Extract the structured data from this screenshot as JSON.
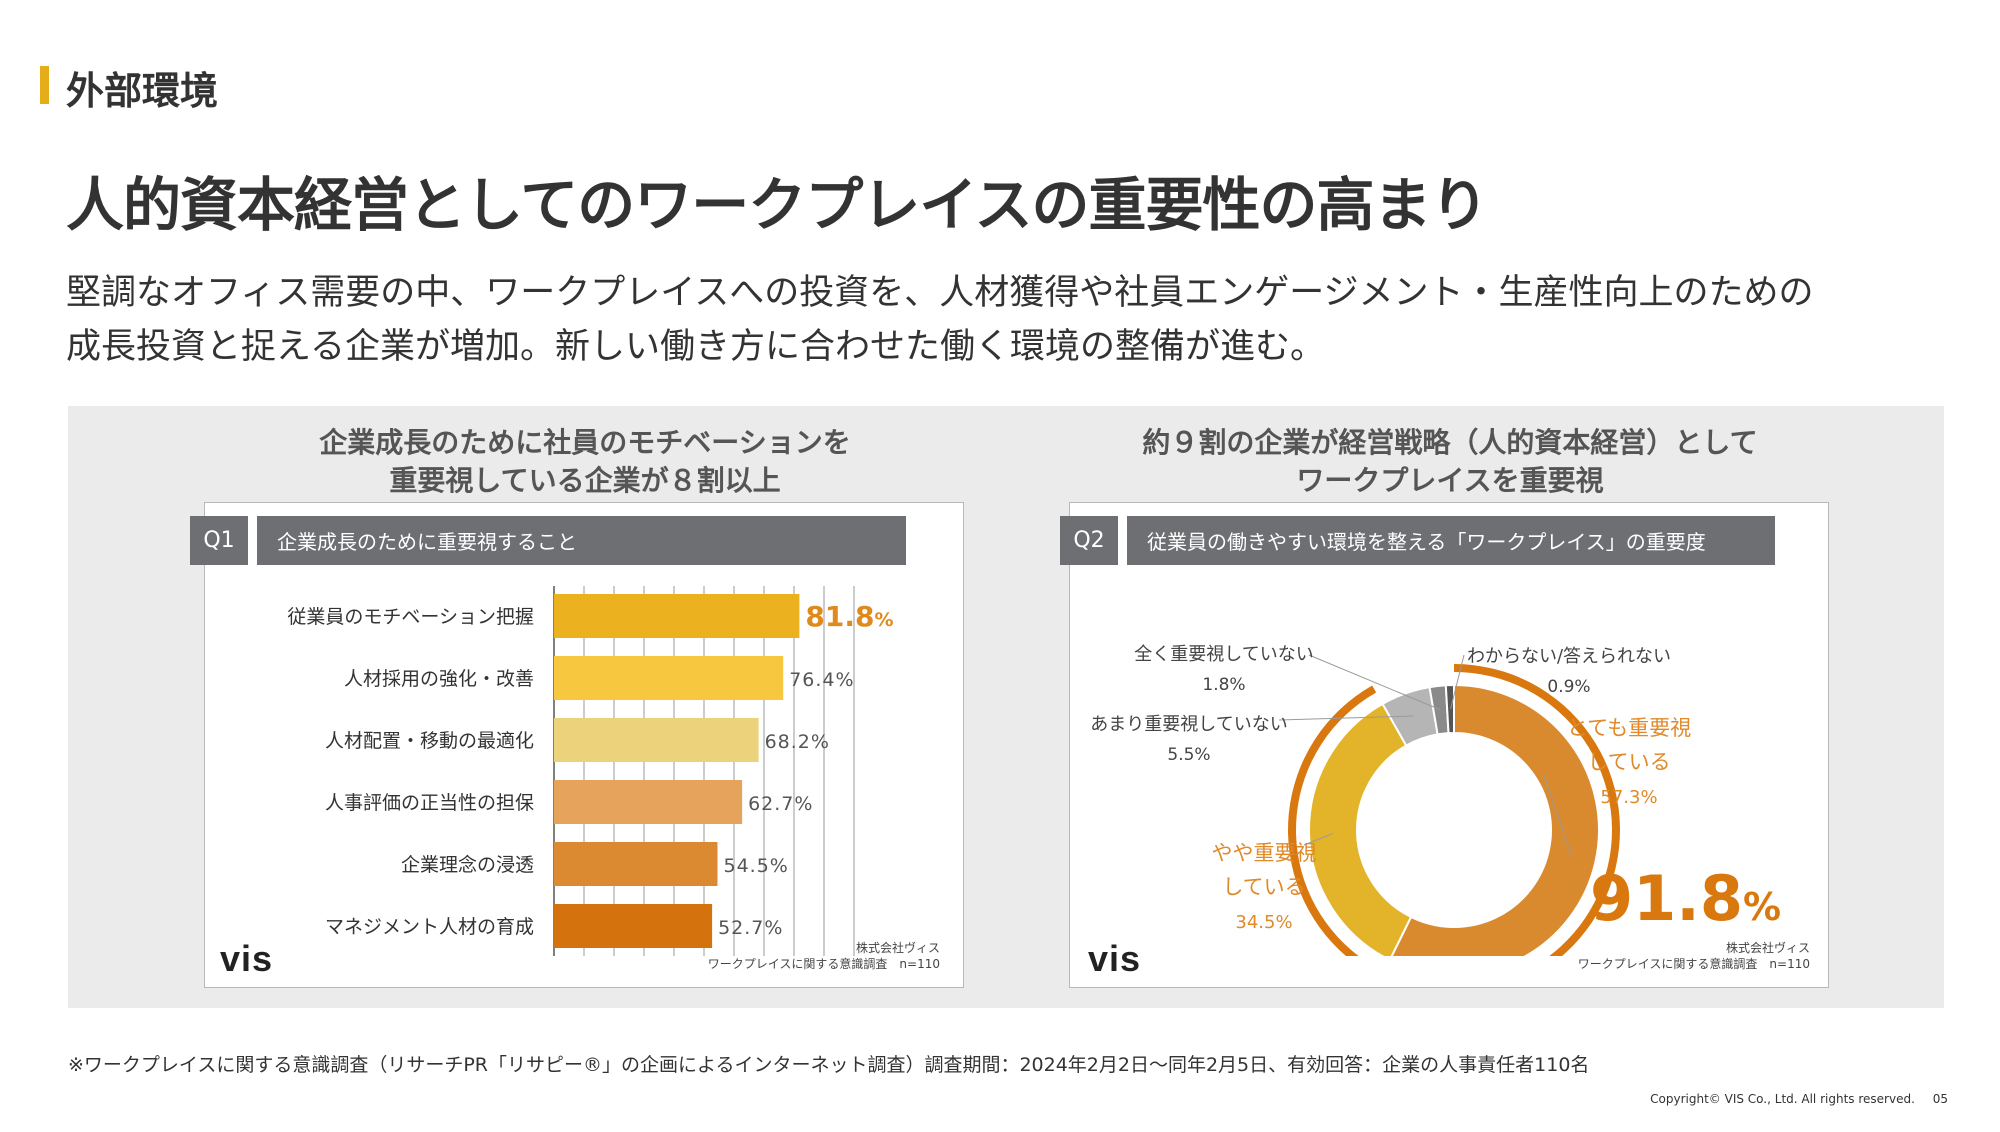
{
  "section_label": "外部環境",
  "title": "人的資本経営としてのワークプレイスの重要性の高まり",
  "lead_lines": [
    "堅調なオフィス需要の中、ワークプレイスへの投資を、人材獲得や社員エンゲージメント・生産性向上のための",
    "成長投資と捉える企業が増加。新しい働き方に合わせた働く環境の整備が進む。"
  ],
  "left": {
    "heading_lines": [
      "企業成長のために社員のモチベーションを",
      "重要視している企業が８割以上"
    ],
    "q_tag": "Q1",
    "q_text": "企業成長のために重要視すること",
    "logo": "vis",
    "source_lines": [
      "株式会社ヴィス",
      "ワークプレイスに関する意識調査　n=110"
    ]
  },
  "right": {
    "heading_lines": [
      "約９割の企業が経営戦略（人的資本経営）として",
      "ワークプレイスを重要視"
    ],
    "q_tag": "Q2",
    "q_text": "従業員の働きやすい環境を整える「ワークプレイス」の重要度",
    "logo": "vis",
    "source_lines": [
      "株式会社ヴィス",
      "ワークプレイスに関する意識調査　n=110"
    ],
    "total_value": "91.8",
    "total_unit": "%"
  },
  "chart_data": [
    {
      "type": "bar",
      "orientation": "horizontal",
      "categories": [
        "従業員のモチベーション把握",
        "人材採用の強化・改善",
        "人材配置・移動の最適化",
        "人事評価の正当性の担保",
        "企業理念の浸透",
        "マネジメント人材の育成"
      ],
      "values": [
        81.8,
        76.4,
        68.2,
        62.7,
        54.5,
        52.7
      ],
      "labels": [
        "81.8",
        "76.4%",
        "68.2%",
        "62.7%",
        "54.5%",
        "52.7%"
      ],
      "highlight_unit": "%",
      "colors": [
        "#ecb11f",
        "#f6c73f",
        "#ecd27a",
        "#e6a35c",
        "#dc8a32",
        "#d4730e"
      ],
      "xlim": [
        0,
        100
      ],
      "grid": true
    },
    {
      "type": "pie",
      "variant": "donut",
      "slices": [
        {
          "label_lines": [
            "とても重要視",
            "している"
          ],
          "value_label": "57.3%",
          "value": 57.3,
          "color": "#d98a2e",
          "text_color": "#e08a2a"
        },
        {
          "label_lines": [
            "やや重要視",
            "している"
          ],
          "value_label": "34.5%",
          "value": 34.5,
          "color": "#e3b429",
          "text_color": "#e08a2a"
        },
        {
          "label_lines": [
            "あまり重要視していない"
          ],
          "value_label": "5.5%",
          "value": 5.5,
          "color": "#b5b5b5",
          "text_color": "#444444"
        },
        {
          "label_lines": [
            "全く重要視していない"
          ],
          "value_label": "1.8%",
          "value": 1.8,
          "color": "#8a8a8a",
          "text_color": "#444444"
        },
        {
          "label_lines": [
            "わからない/答えられない"
          ],
          "value_label": "0.9%",
          "value": 0.9,
          "color": "#555555",
          "text_color": "#444444"
        }
      ],
      "outer_ring_value": 91.8,
      "outer_ring_color": "#d9780f"
    }
  ],
  "footnote": "※ワークプレイスに関する意識調査（リサーチPR「リサピー®」の企画によるインターネット調査）調査期間：2024年2月2日〜同年2月5日、有効回答：企業の人事責任者110名",
  "copyright": "Copyright© VIS Co., Ltd. All rights reserved.",
  "page_number": "05"
}
